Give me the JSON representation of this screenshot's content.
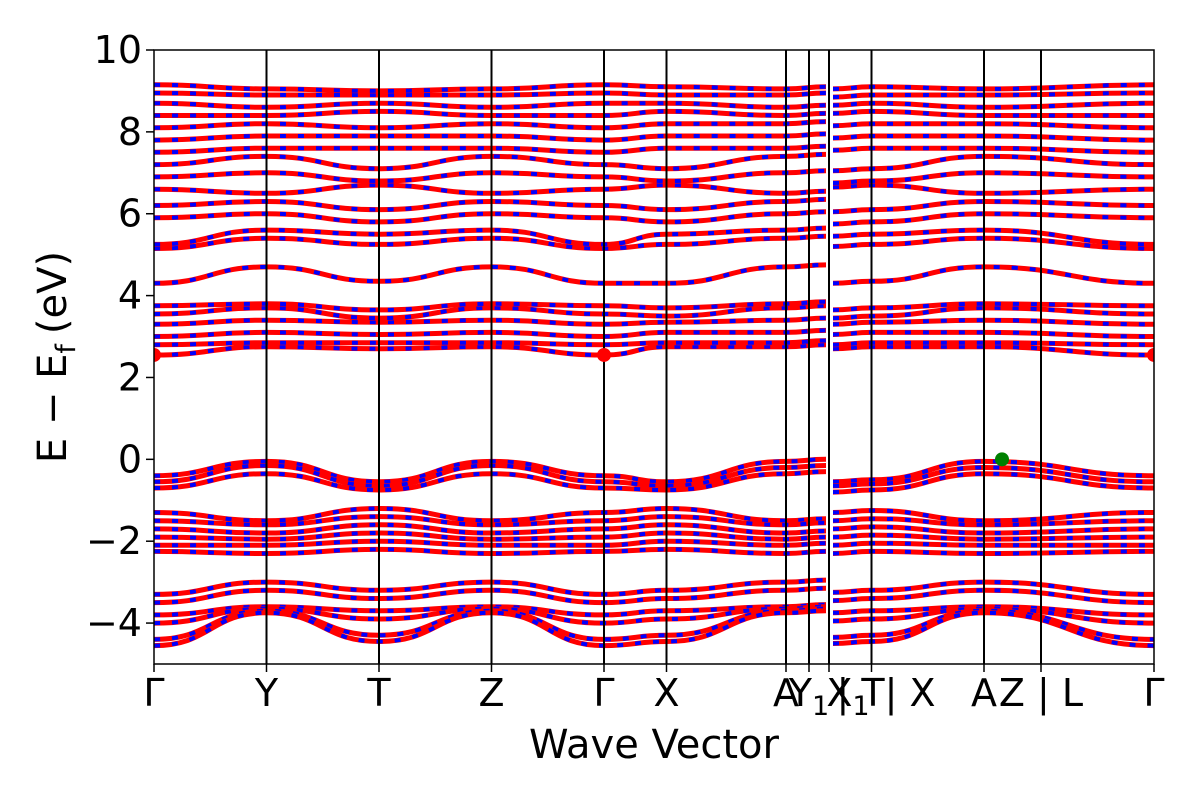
{
  "chart_data": {
    "type": "line",
    "title": "",
    "xlabel": "Wave Vector",
    "ylabel": {
      "main": "E − E",
      "subscript": "f",
      "unit": "(eV)"
    },
    "ylim": [
      -5,
      10
    ],
    "yticks": [
      -4,
      -2,
      0,
      2,
      4,
      6,
      8,
      10
    ],
    "ytick_labels": [
      "−4",
      "−2",
      "0",
      "2",
      "4",
      "6",
      "8",
      "10"
    ],
    "grid": false,
    "legend": "none",
    "kpath": {
      "x_range": [
        0,
        1
      ],
      "high_symmetry_points": [
        {
          "x": 0.0,
          "label": "Γ"
        },
        {
          "x": 0.1125,
          "label": "Y"
        },
        {
          "x": 0.225,
          "label": "T"
        },
        {
          "x": 0.3375,
          "label": "Z"
        },
        {
          "x": 0.45,
          "label": "Γ"
        },
        {
          "x": 0.5125,
          "label": "X"
        },
        {
          "x": 0.632,
          "label": "A"
        },
        {
          "x": 0.655,
          "label": "Y"
        },
        {
          "x": 0.675,
          "label": "X"
        },
        {
          "x": 0.7175,
          "label": "T"
        },
        {
          "x": 0.83,
          "label": "A"
        },
        {
          "x": 0.887,
          "label": "Z"
        },
        {
          "x": 1.0,
          "label": "Γ"
        }
      ],
      "tick_labels_display": [
        {
          "x": 0.0,
          "text": "Γ",
          "sub": ""
        },
        {
          "x": 0.1125,
          "text": "Y",
          "sub": ""
        },
        {
          "x": 0.225,
          "text": "T",
          "sub": ""
        },
        {
          "x": 0.3375,
          "text": "Z",
          "sub": ""
        },
        {
          "x": 0.45,
          "text": "Γ",
          "sub": ""
        },
        {
          "x": 0.5125,
          "text": "X",
          "sub": ""
        },
        {
          "x": 0.632,
          "text": "A",
          "sub": ""
        },
        {
          "x": 0.655,
          "text": "Y",
          "sub": "1"
        },
        {
          "x": 0.694,
          "text": "X",
          "sub": "1"
        },
        {
          "x": 0.732,
          "text": "| T| X",
          "sub": ""
        },
        {
          "x": 0.83,
          "text": "A",
          "sub": ""
        },
        {
          "x": 0.887,
          "text": "Z | L",
          "sub": ""
        },
        {
          "x": 1.0,
          "text": "Γ",
          "sub": ""
        }
      ]
    },
    "series_colors": {
      "spin_up": "#ff0000",
      "spin_down": "#0000ff"
    },
    "band_energies_at_kpoints": {
      "valence": [
        [
          -0.4,
          -0.05,
          -0.55,
          -0.05,
          -0.4,
          -0.55,
          -0.05,
          -0.5,
          -0.05,
          -0.4
        ],
        [
          -0.55,
          -0.15,
          -0.65,
          -0.15,
          -0.55,
          -0.65,
          -0.2,
          -0.6,
          -0.2,
          -0.55
        ],
        [
          -0.7,
          -0.35,
          -0.75,
          -0.35,
          -0.7,
          -0.75,
          -0.35,
          -0.75,
          -0.35,
          -0.7
        ],
        [
          -1.3,
          -1.5,
          -1.2,
          -1.5,
          -1.3,
          -1.2,
          -1.5,
          -1.25,
          -1.5,
          -1.3
        ],
        [
          -1.5,
          -1.6,
          -1.4,
          -1.6,
          -1.5,
          -1.4,
          -1.6,
          -1.45,
          -1.6,
          -1.5
        ],
        [
          -1.7,
          -1.8,
          -1.6,
          -1.8,
          -1.7,
          -1.6,
          -1.8,
          -1.65,
          -1.8,
          -1.7
        ],
        [
          -1.9,
          -1.95,
          -1.8,
          -1.95,
          -1.9,
          -1.8,
          -1.95,
          -1.85,
          -1.95,
          -1.9
        ],
        [
          -2.1,
          -2.1,
          -2.0,
          -2.1,
          -2.1,
          -2.0,
          -2.1,
          -2.05,
          -2.1,
          -2.1
        ],
        [
          -2.25,
          -2.3,
          -2.2,
          -2.3,
          -2.25,
          -2.2,
          -2.3,
          -2.25,
          -2.3,
          -2.25
        ],
        [
          -3.3,
          -3.0,
          -3.2,
          -3.0,
          -3.3,
          -3.2,
          -3.0,
          -3.2,
          -3.0,
          -3.3
        ],
        [
          -3.5,
          -3.2,
          -3.4,
          -3.2,
          -3.5,
          -3.4,
          -3.2,
          -3.4,
          -3.2,
          -3.5
        ],
        [
          -3.8,
          -3.6,
          -3.7,
          -3.6,
          -3.8,
          -3.7,
          -3.6,
          -3.7,
          -3.6,
          -3.8
        ],
        [
          -4.0,
          -3.65,
          -3.9,
          -3.65,
          -4.0,
          -3.9,
          -3.65,
          -3.9,
          -3.65,
          -4.0
        ],
        [
          -4.4,
          -3.7,
          -4.3,
          -3.7,
          -4.4,
          -4.3,
          -3.7,
          -4.3,
          -3.7,
          -4.4
        ],
        [
          -4.55,
          -3.75,
          -4.45,
          -3.75,
          -4.55,
          -4.45,
          -3.75,
          -4.45,
          -3.75,
          -4.55
        ]
      ],
      "conduction": [
        [
          2.55,
          2.75,
          2.7,
          2.75,
          2.55,
          2.75,
          2.75,
          2.75,
          2.75,
          2.55
        ],
        [
          2.8,
          2.85,
          2.85,
          2.85,
          2.8,
          2.85,
          2.85,
          2.85,
          2.85,
          2.8
        ],
        [
          3.0,
          3.1,
          3.05,
          3.1,
          3.0,
          3.1,
          3.1,
          3.1,
          3.1,
          3.0
        ],
        [
          3.3,
          3.4,
          3.35,
          3.4,
          3.3,
          3.35,
          3.4,
          3.35,
          3.4,
          3.3
        ],
        [
          3.55,
          3.7,
          3.45,
          3.7,
          3.55,
          3.5,
          3.7,
          3.5,
          3.7,
          3.55
        ],
        [
          3.75,
          3.8,
          3.65,
          3.8,
          3.75,
          3.7,
          3.8,
          3.7,
          3.8,
          3.75
        ],
        [
          4.3,
          4.7,
          4.35,
          4.7,
          4.3,
          4.3,
          4.7,
          4.35,
          4.7,
          4.3
        ],
        [
          5.15,
          5.4,
          5.25,
          5.4,
          5.15,
          5.25,
          5.4,
          5.25,
          5.4,
          5.15
        ],
        [
          5.25,
          5.6,
          5.5,
          5.6,
          5.25,
          5.5,
          5.6,
          5.5,
          5.6,
          5.25
        ],
        [
          5.9,
          6.0,
          5.8,
          6.0,
          5.9,
          5.8,
          6.0,
          5.8,
          6.0,
          5.9
        ],
        [
          6.2,
          6.3,
          6.1,
          6.3,
          6.2,
          6.1,
          6.3,
          6.1,
          6.3,
          6.2
        ],
        [
          6.6,
          6.5,
          6.7,
          6.5,
          6.6,
          6.7,
          6.5,
          6.7,
          6.5,
          6.6
        ],
        [
          6.9,
          7.0,
          6.8,
          7.0,
          6.9,
          6.8,
          7.0,
          6.8,
          7.0,
          6.9
        ],
        [
          7.2,
          7.4,
          7.1,
          7.4,
          7.2,
          7.1,
          7.4,
          7.1,
          7.4,
          7.2
        ],
        [
          7.5,
          7.6,
          7.6,
          7.6,
          7.5,
          7.6,
          7.6,
          7.6,
          7.6,
          7.5
        ],
        [
          7.8,
          7.9,
          7.9,
          7.9,
          7.8,
          7.9,
          7.9,
          7.9,
          7.9,
          7.8
        ],
        [
          8.1,
          8.2,
          8.1,
          8.2,
          8.1,
          8.2,
          8.2,
          8.2,
          8.2,
          8.1
        ],
        [
          8.4,
          8.4,
          8.5,
          8.4,
          8.4,
          8.5,
          8.4,
          8.5,
          8.4,
          8.4
        ],
        [
          8.7,
          8.6,
          8.7,
          8.6,
          8.7,
          8.7,
          8.6,
          8.7,
          8.6,
          8.7
        ],
        [
          8.95,
          8.9,
          8.9,
          8.9,
          8.95,
          8.9,
          8.9,
          8.9,
          8.9,
          8.95
        ],
        [
          9.15,
          9.05,
          9.0,
          9.05,
          9.15,
          9.1,
          9.05,
          9.1,
          9.05,
          9.15
        ]
      ]
    },
    "markers": [
      {
        "name": "cbm",
        "x": 0.0,
        "y": 2.55,
        "color": "#ff0000"
      },
      {
        "name": "cbm",
        "x": 0.45,
        "y": 2.55,
        "color": "#ff0000"
      },
      {
        "name": "cbm",
        "x": 1.0,
        "y": 2.55,
        "color": "#ff0000"
      },
      {
        "name": "vbm",
        "x": 0.848,
        "y": 0.0,
        "color": "#008000"
      }
    ]
  }
}
